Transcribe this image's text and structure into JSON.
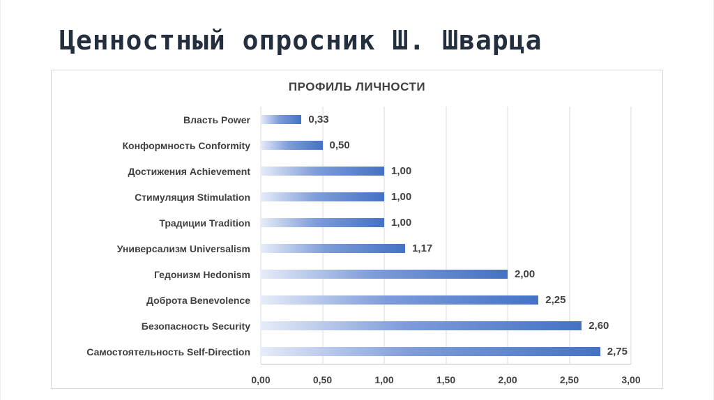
{
  "page": {
    "title": "Ценностный опросник Ш. Шварца"
  },
  "chart_data": {
    "type": "bar",
    "orientation": "horizontal",
    "title": "ПРОФИЛЬ ЛИЧНОСТИ",
    "categories": [
      "Власть Power",
      "Конформность Conformity",
      "Достижения Achievement",
      "Стимуляция Stimulation",
      "Традиции Tradition",
      "Универсализм Universalism",
      "Гедонизм Hedonism",
      "Доброта Benevolence",
      "Безопасность Security",
      "Самостоятельность Self-Direction"
    ],
    "values": [
      0.33,
      0.5,
      1.0,
      1.0,
      1.0,
      1.17,
      2.0,
      2.25,
      2.6,
      2.75
    ],
    "value_labels": [
      "0,33",
      "0,50",
      "1,00",
      "1,00",
      "1,00",
      "1,17",
      "2,00",
      "2,25",
      "2,60",
      "2,75"
    ],
    "xlim": [
      0,
      3
    ],
    "xtick_labels": [
      "0,00",
      "0,50",
      "1,00",
      "1,50",
      "2,00",
      "2,50",
      "3,00"
    ],
    "grid": true,
    "legend": false,
    "colors": {
      "bar_gradient_start": "#e6ecf8",
      "bar_gradient_mid": "#7e9cd9",
      "bar_gradient_end": "#4472c4",
      "gridline": "#d9d9d9",
      "axis_line": "#bfbfbf",
      "text": "#404040"
    }
  }
}
